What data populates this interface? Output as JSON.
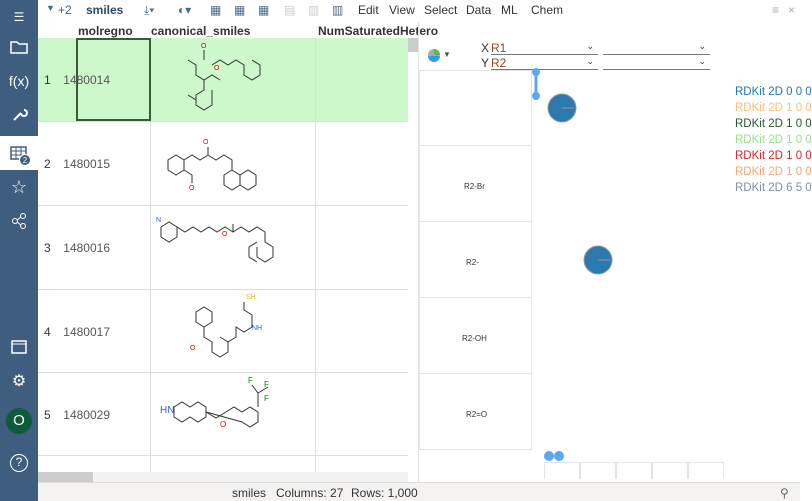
{
  "sidebar": {
    "badge": "2",
    "user_initial": "O"
  },
  "toolbar": {
    "extra_count": "+2",
    "table_name": "smiles",
    "menus": [
      "Edit",
      "View",
      "Select",
      "Data",
      "ML",
      "Chem"
    ]
  },
  "grid": {
    "columns": [
      "molregno",
      "canonical_smiles",
      "NumSaturatedHetero"
    ],
    "rows": [
      {
        "n": "1",
        "molregno": "1480014"
      },
      {
        "n": "2",
        "molregno": "1480015"
      },
      {
        "n": "3",
        "molregno": "1480016"
      },
      {
        "n": "4",
        "molregno": "1480017"
      },
      {
        "n": "5",
        "molregno": "1480029"
      }
    ]
  },
  "panel": {
    "x_label": "X",
    "x_value": "R1",
    "y_label": "Y",
    "y_value": "R2",
    "rgroups": [
      "",
      "R2-Br",
      "R2-",
      "R2-OH",
      "R2=O"
    ],
    "legend": [
      {
        "label": "RDKit 2D 0 0 0",
        "color": "#1f77b4"
      },
      {
        "label": "RDKit 2D 1 0 0",
        "color": "#ffbb78"
      },
      {
        "label": "RDKit 2D 1 0 0",
        "color": "#2a5a2a"
      },
      {
        "label": "RDKit 2D 1 0 0",
        "color": "#98df8a"
      },
      {
        "label": "RDKit 2D 1 0 0",
        "color": "#d62728"
      },
      {
        "label": "RDKit 2D 1 0 0",
        "color": "#f5a57a"
      },
      {
        "label": "RDKit 2D 6 5 0",
        "color": "#7f8fa6"
      }
    ],
    "pie_color": "#2a7ab0"
  },
  "status": {
    "table": "smiles",
    "columns": "Columns: 27",
    "rows": "Rows: 1,000"
  }
}
